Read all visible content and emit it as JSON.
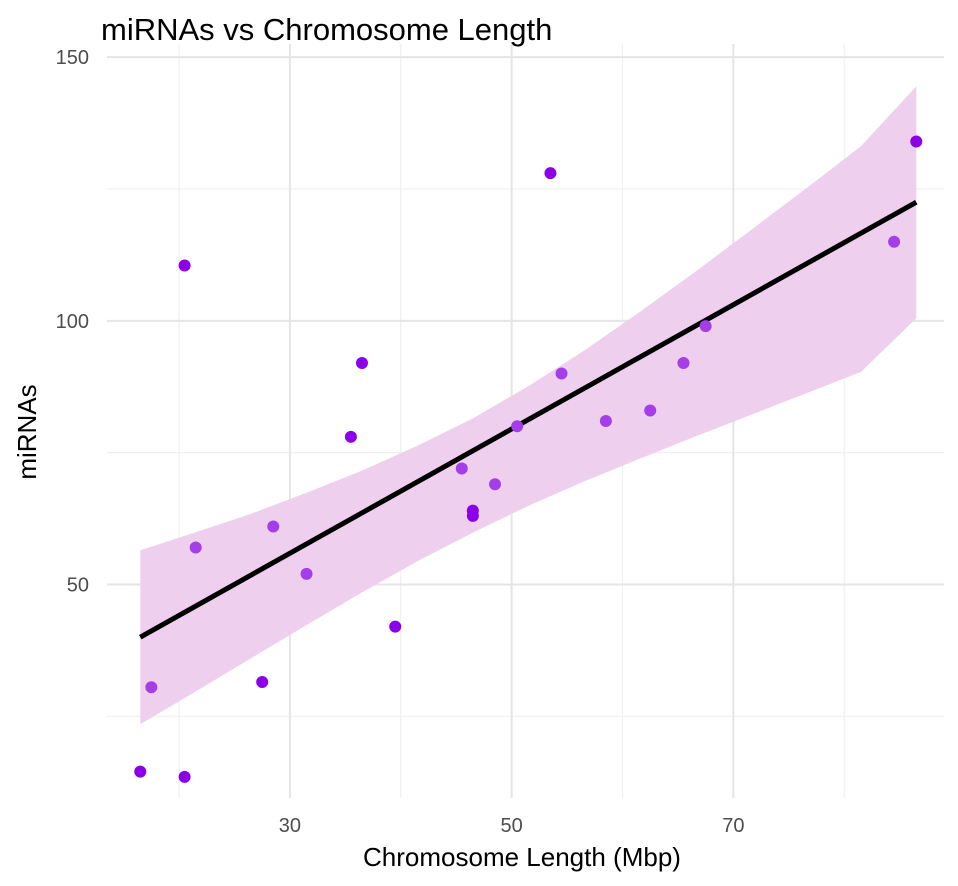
{
  "chart_data": {
    "type": "scatter",
    "title": "miRNAs vs Chromosome Length",
    "xlabel": "Chromosome Length (Mbp)",
    "ylabel": "miRNAs",
    "xlim": [
      13.5,
      89
    ],
    "ylim": [
      9.5,
      152.5
    ],
    "x_ticks": [
      30,
      50,
      70
    ],
    "x_tick_labels": [
      "30",
      "50",
      "70"
    ],
    "x_minor_ticks": [
      20,
      40,
      60,
      80
    ],
    "y_ticks": [
      50,
      100,
      150
    ],
    "y_tick_labels": [
      "50",
      "100",
      "150"
    ],
    "y_minor_ticks": [
      25,
      75,
      125
    ],
    "grid": true,
    "legend": "none",
    "point_colors": {
      "dark": "#8b00e8",
      "mid": "#a43ee8"
    },
    "points": [
      {
        "x": 16.5,
        "y": 14.5,
        "tone": "dark"
      },
      {
        "x": 17.5,
        "y": 30.5,
        "tone": "mid"
      },
      {
        "x": 20.5,
        "y": 13.5,
        "tone": "dark"
      },
      {
        "x": 20.5,
        "y": 110.5,
        "tone": "dark"
      },
      {
        "x": 21.5,
        "y": 57,
        "tone": "mid"
      },
      {
        "x": 27.5,
        "y": 31.5,
        "tone": "dark"
      },
      {
        "x": 28.5,
        "y": 61,
        "tone": "mid"
      },
      {
        "x": 31.5,
        "y": 52,
        "tone": "mid"
      },
      {
        "x": 35.5,
        "y": 78,
        "tone": "dark"
      },
      {
        "x": 36.5,
        "y": 92,
        "tone": "dark"
      },
      {
        "x": 39.5,
        "y": 42,
        "tone": "dark"
      },
      {
        "x": 45.5,
        "y": 72,
        "tone": "mid"
      },
      {
        "x": 46.5,
        "y": 64,
        "tone": "dark"
      },
      {
        "x": 46.5,
        "y": 63,
        "tone": "dark"
      },
      {
        "x": 48.5,
        "y": 69,
        "tone": "mid"
      },
      {
        "x": 50.5,
        "y": 80,
        "tone": "mid"
      },
      {
        "x": 53.5,
        "y": 128,
        "tone": "dark"
      },
      {
        "x": 54.5,
        "y": 90,
        "tone": "mid"
      },
      {
        "x": 58.5,
        "y": 81,
        "tone": "mid"
      },
      {
        "x": 62.5,
        "y": 83,
        "tone": "mid"
      },
      {
        "x": 65.5,
        "y": 92,
        "tone": "mid"
      },
      {
        "x": 67.5,
        "y": 99,
        "tone": "mid"
      },
      {
        "x": 84.5,
        "y": 115,
        "tone": "mid"
      },
      {
        "x": 86.5,
        "y": 134,
        "tone": "dark"
      }
    ],
    "trend_line": {
      "color": "#000000",
      "x": [
        16.5,
        86.5
      ],
      "y": [
        40,
        122.5
      ]
    },
    "confidence_band": {
      "color": "#eed0ee",
      "x": [
        16.5,
        21.5,
        26.5,
        31.5,
        36.5,
        41.5,
        46.5,
        51.5,
        56.5,
        61.5,
        66.5,
        71.5,
        76.5,
        81.5,
        86.5
      ],
      "upper": [
        56.5,
        59.9,
        63.4,
        67.4,
        71.6,
        76.3,
        81.5,
        87.6,
        94.3,
        101.6,
        109.2,
        117.1,
        125.0,
        133.1,
        144.5
      ],
      "lower": [
        23.5,
        29.7,
        36.0,
        42.3,
        48.5,
        54.4,
        59.8,
        64.9,
        69.5,
        73.8,
        78.0,
        82.1,
        86.2,
        90.3,
        100.5
      ]
    }
  }
}
